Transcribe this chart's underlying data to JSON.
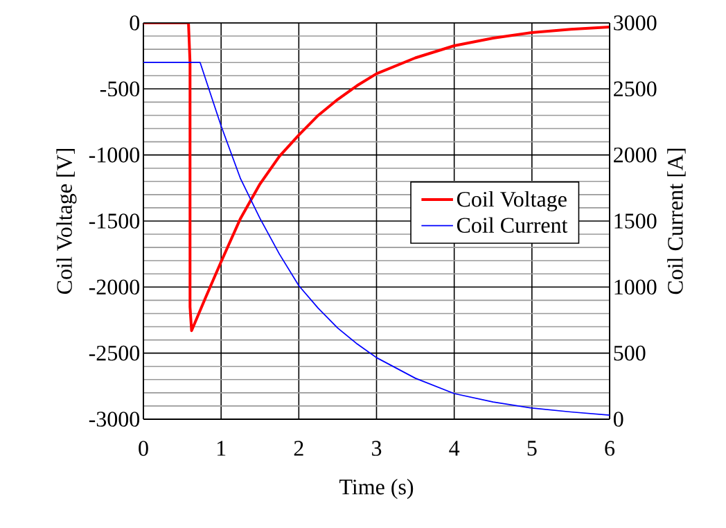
{
  "chart_data": {
    "type": "line",
    "xlabel": "Time (s)",
    "ylabel": "Coil Voltage [V]",
    "y2label": "Coil Current [A]",
    "xlim": [
      0,
      6
    ],
    "xticks": [
      0,
      1,
      2,
      3,
      4,
      5,
      6
    ],
    "ylim": [
      -3000,
      0
    ],
    "yticks": [
      -3000,
      -2500,
      -2000,
      -1500,
      -1000,
      -500,
      0
    ],
    "y2lim": [
      0,
      3000
    ],
    "y2ticks": [
      0,
      500,
      1000,
      1500,
      2000,
      2500,
      3000
    ],
    "grid": true,
    "legend": "right",
    "line_style": "solid",
    "marker": "none",
    "series": [
      {
        "name": "Coil Voltage",
        "color": "#ff0000",
        "x": [
          0,
          0.58,
          0.6,
          0.6,
          0.62,
          0.8,
          1.0,
          1.25,
          1.5,
          1.75,
          2,
          2.25,
          2.5,
          2.75,
          3,
          3.5,
          4,
          4.5,
          5,
          5.5,
          6
        ],
        "values": [
          0,
          0,
          -300,
          -2150,
          -2330,
          -2080,
          -1808,
          -1480,
          -1220,
          -1010,
          -849,
          -700,
          -580,
          -475,
          -385,
          -265,
          -173,
          -115,
          -73,
          -48,
          -31
        ]
      },
      {
        "name": "Coil Current",
        "color": "#0000ff",
        "axis": "y2",
        "x": [
          0,
          0.73,
          1.0,
          1.25,
          1.5,
          1.75,
          2,
          2.25,
          2.5,
          2.75,
          3,
          3.5,
          4,
          4.5,
          5,
          5.5,
          6
        ],
        "values": [
          2700,
          2700,
          2220,
          1820,
          1520,
          1250,
          1011,
          840,
          690,
          570,
          466,
          310,
          194,
          130,
          84,
          55,
          31
        ]
      }
    ]
  }
}
